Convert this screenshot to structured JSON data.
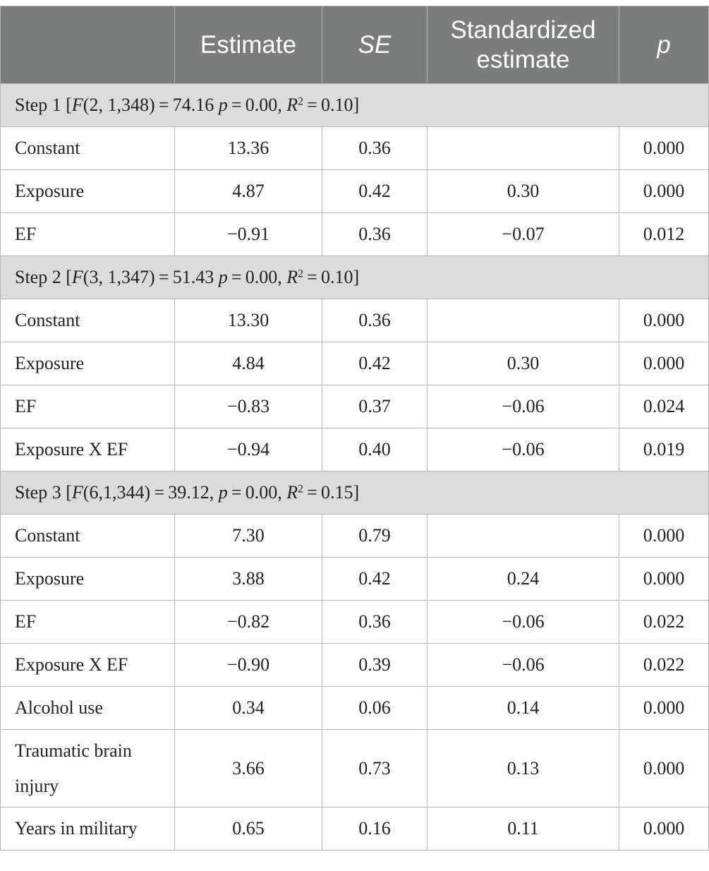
{
  "columns": [
    "",
    "Estimate",
    "SE",
    "Standardized estimate",
    "p"
  ],
  "steps": [
    {
      "stats": {
        "df": "(2, 1,348)",
        "f_value": "74.16",
        "p_value": "0.00",
        "r2": "0.10"
      },
      "rows": [
        {
          "label": "Constant",
          "estimate": "13.36",
          "se": "0.36",
          "std": "",
          "p": "0.000"
        },
        {
          "label": "Exposure",
          "estimate": "4.87",
          "se": "0.42",
          "std": "0.30",
          "p": "0.000"
        },
        {
          "label": "EF",
          "estimate": "−0.91",
          "se": "0.36",
          "std": "−0.07",
          "p": "0.012"
        }
      ]
    },
    {
      "stats": {
        "df": "(3, 1,347)",
        "f_value": "51.43",
        "p_value": "0.00",
        "r2": "0.10"
      },
      "rows": [
        {
          "label": "Constant",
          "estimate": "13.30",
          "se": "0.36",
          "std": "",
          "p": "0.000"
        },
        {
          "label": "Exposure",
          "estimate": "4.84",
          "se": "0.42",
          "std": "0.30",
          "p": "0.000"
        },
        {
          "label": "EF",
          "estimate": "−0.83",
          "se": "0.37",
          "std": "−0.06",
          "p": "0.024"
        },
        {
          "label": "Exposure X EF",
          "estimate": "−0.94",
          "se": "0.40",
          "std": "−0.06",
          "p": "0.019"
        }
      ]
    },
    {
      "stats": {
        "df": "(6,1,344)",
        "f_value": "39.12,",
        "p_value": "0.00",
        "r2": "0.15"
      },
      "rows": [
        {
          "label": "Constant",
          "estimate": "7.30",
          "se": "0.79",
          "std": "",
          "p": "0.000"
        },
        {
          "label": "Exposure",
          "estimate": "3.88",
          "se": "0.42",
          "std": "0.24",
          "p": "0.000"
        },
        {
          "label": "EF",
          "estimate": "−0.82",
          "se": "0.36",
          "std": "−0.06",
          "p": "0.022"
        },
        {
          "label": "Exposure X EF",
          "estimate": "−0.90",
          "se": "0.39",
          "std": "−0.06",
          "p": "0.022"
        },
        {
          "label": "Alcohol use",
          "estimate": "0.34",
          "se": "0.06",
          "std": "0.14",
          "p": "0.000"
        },
        {
          "label": "Traumatic brain injury",
          "estimate": "3.66",
          "se": "0.73",
          "std": "0.13",
          "p": "0.000"
        },
        {
          "label": "Years in military",
          "estimate": "0.65",
          "se": "0.16",
          "std": "0.11",
          "p": "0.000"
        }
      ]
    }
  ]
}
